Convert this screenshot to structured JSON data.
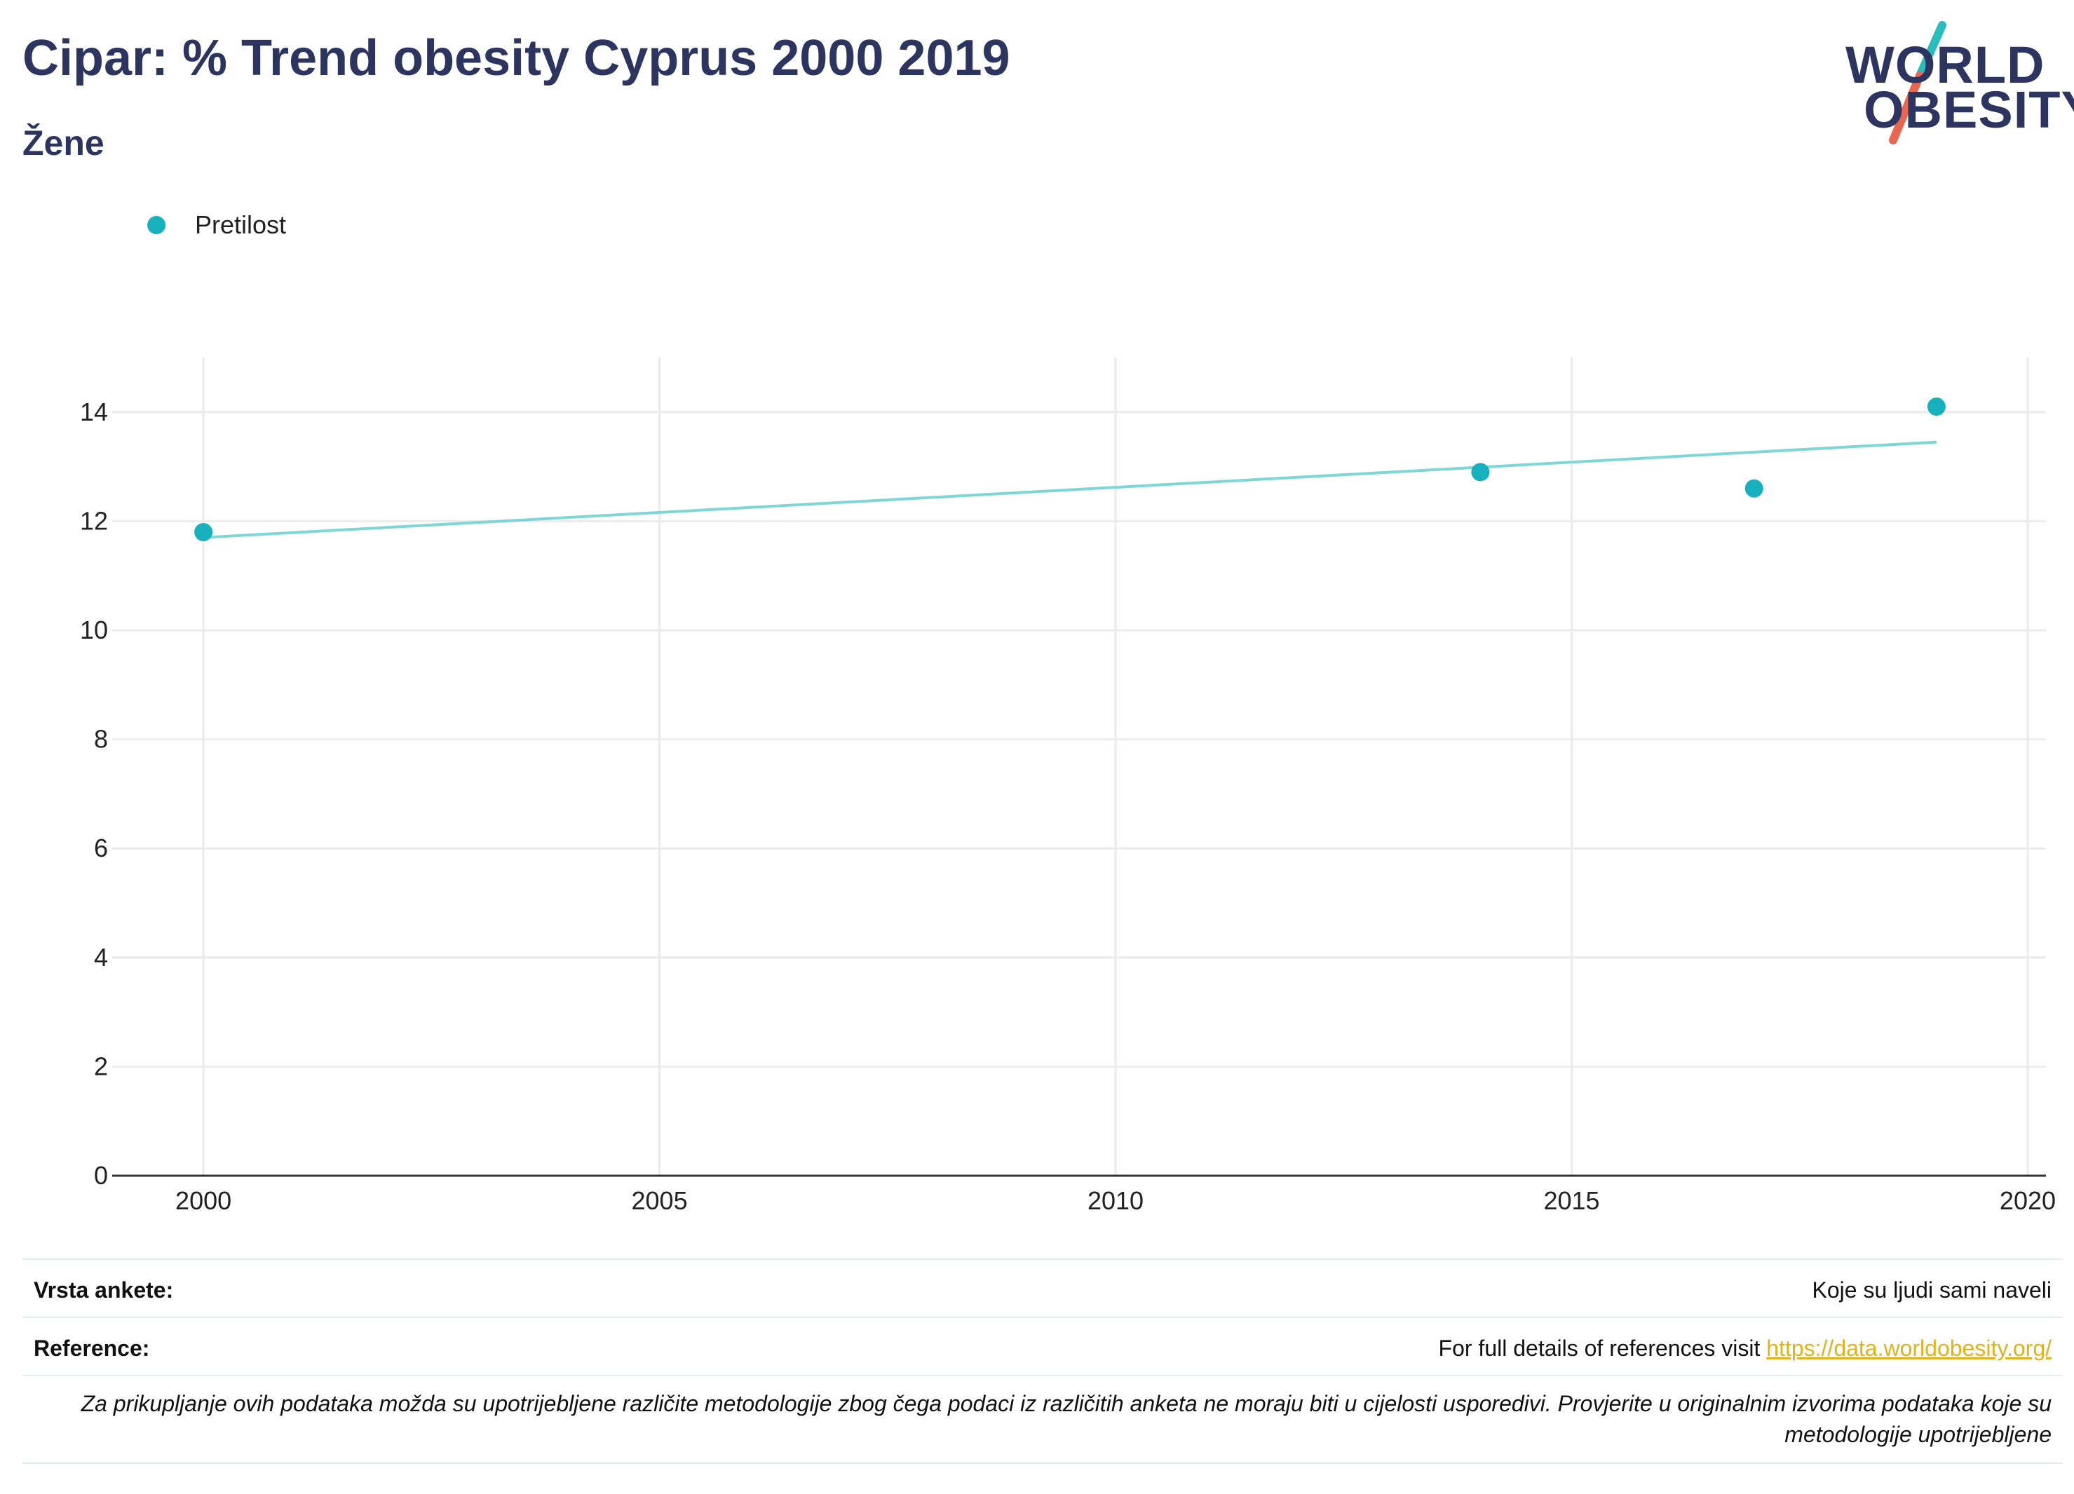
{
  "header": {
    "title": "Cipar: % Trend obesity Cyprus 2000 2019",
    "subtitle": "Žene"
  },
  "logo": {
    "line1": "WORLD",
    "line2": "OBESITY",
    "accent_teal": "#2bbdbe",
    "accent_red": "#e8664f"
  },
  "legend": {
    "label": "Pretilost",
    "color": "#17b1bd"
  },
  "chart_data": {
    "type": "scatter",
    "title": "Cipar: % Trend obesity Cyprus 2000 2019",
    "subtitle": "Žene",
    "xlabel": "",
    "ylabel": "",
    "xlim": [
      1999,
      2020.2
    ],
    "ylim": [
      0,
      15
    ],
    "xticks": [
      2000,
      2005,
      2010,
      2015,
      2020
    ],
    "yticks": [
      0,
      2,
      4,
      6,
      8,
      10,
      12,
      14
    ],
    "grid": true,
    "legend_position": "top-left",
    "series": [
      {
        "name": "Pretilost",
        "color": "#17b1bd",
        "x": [
          2000,
          2014,
          2017,
          2019
        ],
        "y": [
          11.8,
          12.9,
          12.6,
          14.1
        ]
      }
    ],
    "trendline": {
      "color": "#7fd6d6",
      "x": [
        2000,
        2019
      ],
      "y": [
        11.7,
        13.45
      ]
    }
  },
  "footer": {
    "survey_label": "Vrsta ankete:",
    "survey_value": "Koje su ljudi sami naveli",
    "reference_label": "Reference:",
    "reference_text": "For full details of references visit ",
    "reference_link": "https://data.worldobesity.org/",
    "note": "Za prikupljanje ovih podataka možda su upotrijebljene različite metodologije zbog čega podaci iz različitih anketa ne moraju biti u cijelosti usporedivi. Provjerite u originalnim izvorima podataka koje su metodologije upotrijebljene"
  }
}
